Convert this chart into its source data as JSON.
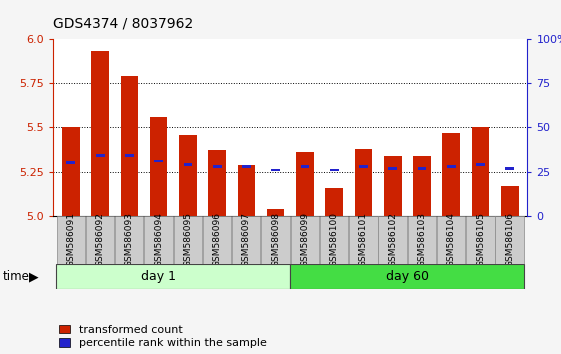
{
  "title": "GDS4374 / 8037962",
  "samples": [
    "GSM586091",
    "GSM586092",
    "GSM586093",
    "GSM586094",
    "GSM586095",
    "GSM586096",
    "GSM586097",
    "GSM586098",
    "GSM586099",
    "GSM586100",
    "GSM586101",
    "GSM586102",
    "GSM586103",
    "GSM586104",
    "GSM586105",
    "GSM586106"
  ],
  "red_values": [
    5.5,
    5.93,
    5.79,
    5.56,
    5.46,
    5.37,
    5.29,
    5.04,
    5.36,
    5.16,
    5.38,
    5.34,
    5.34,
    5.47,
    5.5,
    5.17
  ],
  "blue_values": [
    5.3,
    5.34,
    5.34,
    5.31,
    5.29,
    5.28,
    5.28,
    5.26,
    5.28,
    5.26,
    5.28,
    5.27,
    5.27,
    5.28,
    5.29,
    5.27
  ],
  "ylim_left": [
    5.0,
    6.0
  ],
  "yticks_left": [
    5.0,
    5.25,
    5.5,
    5.75,
    6.0
  ],
  "yticks_right": [
    0,
    25,
    50,
    75,
    100
  ],
  "bar_color": "#cc2200",
  "dot_color": "#2222cc",
  "day1_color": "#ccffcc",
  "day60_color": "#44dd44",
  "label_bg_color": "#cccccc",
  "plot_bg": "#ffffff",
  "fig_bg": "#f5f5f5",
  "grid_color": "#000000",
  "n_day1": 8,
  "n_day60": 8
}
